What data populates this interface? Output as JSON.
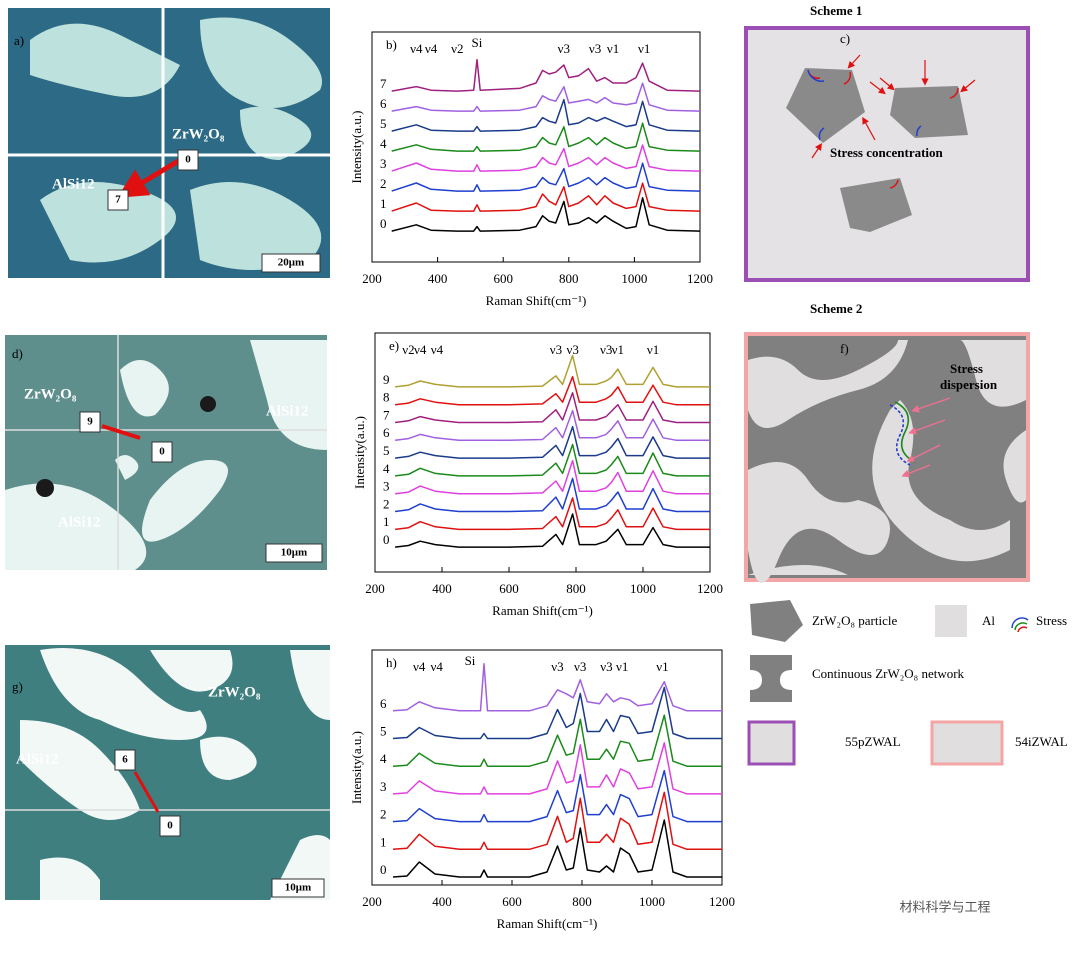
{
  "micrographs": [
    {
      "label": "a)",
      "phase_1": "ZrW₂O₈",
      "phase_2": "AlSi12",
      "point_start": "0",
      "point_end": "7",
      "scale_bar": "20μm"
    },
    {
      "label": "d)",
      "phase_1": "ZrW₂O₈",
      "phase_2": "AlSi12",
      "phase_3": "AlSi12",
      "point_start": "9",
      "point_end": "0",
      "scale_bar": "10μm"
    },
    {
      "label": "g)",
      "phase_1": "ZrW₂O₈",
      "phase_2": "AlSi12",
      "point_start": "6",
      "point_end": "0",
      "scale_bar": "10μm"
    }
  ],
  "schemes": [
    {
      "title": "Scheme 1",
      "label": "c)",
      "annotation": "Stress concentration"
    },
    {
      "title": "Scheme 2",
      "label": "f)",
      "annotation_1": "Stress",
      "annotation_2": "dispersion"
    }
  ],
  "legend": {
    "particle": "ZrW₂O₈ particle",
    "matrix": "Al",
    "stress": "Stress",
    "network": "Continuous ZrW₂O₈ network",
    "sample_1": "55pZWAL",
    "sample_2": "54iZWAL"
  },
  "watermark": "材料科学与工程",
  "chart_data": [
    {
      "type": "line",
      "label": "b)",
      "x_label": "Raman Shift(cm⁻¹)",
      "y_label": "Intensity(a.u.)",
      "xlim": [
        200,
        1200
      ],
      "xticks": [
        200,
        400,
        600,
        800,
        1000,
        1200
      ],
      "x": [
        260,
        335,
        380,
        460,
        510,
        520,
        530,
        650,
        700,
        720,
        740,
        760,
        785,
        800,
        830,
        860,
        885,
        910,
        935,
        975,
        1005,
        1025,
        1045,
        1100,
        1200
      ],
      "series": [
        {
          "name": "0",
          "color": "#000000",
          "values": [
            0.05,
            0.4,
            0.1,
            0.05,
            0.05,
            0.3,
            0.05,
            0.1,
            0.3,
            0.9,
            0.6,
            0.5,
            1.7,
            0.4,
            0.5,
            0.8,
            0.5,
            0.9,
            0.6,
            0.2,
            0.3,
            1.9,
            0.4,
            0.1,
            0.05
          ]
        },
        {
          "name": "1",
          "color": "#e01010",
          "values": [
            0.05,
            0.5,
            0.1,
            0.05,
            0.05,
            0.4,
            0.05,
            0.1,
            0.3,
            1.0,
            0.6,
            0.4,
            1.4,
            0.3,
            0.5,
            0.9,
            0.4,
            0.9,
            0.5,
            0.2,
            0.3,
            1.6,
            0.3,
            0.1,
            0.05
          ]
        },
        {
          "name": "2",
          "color": "#1f3fcf",
          "values": [
            0.05,
            0.5,
            0.15,
            0.05,
            0.05,
            0.4,
            0.05,
            0.1,
            0.3,
            0.8,
            0.5,
            0.4,
            1.3,
            0.3,
            0.5,
            0.8,
            0.4,
            0.8,
            0.5,
            0.2,
            0.3,
            1.6,
            0.3,
            0.1,
            0.05
          ]
        },
        {
          "name": "3",
          "color": "#e040e0",
          "values": [
            0.05,
            0.5,
            0.15,
            0.05,
            0.05,
            0.4,
            0.05,
            0.1,
            0.3,
            0.8,
            0.5,
            0.4,
            1.3,
            0.3,
            0.5,
            0.8,
            0.4,
            0.8,
            0.5,
            0.2,
            0.3,
            1.5,
            0.3,
            0.1,
            0.05
          ]
        },
        {
          "name": "4",
          "color": "#1a8a1a",
          "values": [
            0.05,
            0.4,
            0.15,
            0.05,
            0.05,
            0.3,
            0.05,
            0.1,
            0.3,
            0.8,
            0.5,
            0.4,
            1.4,
            0.3,
            0.5,
            0.8,
            0.4,
            0.8,
            0.5,
            0.2,
            0.3,
            1.6,
            0.3,
            0.1,
            0.05
          ]
        },
        {
          "name": "5",
          "color": "#1a3a8a",
          "values": [
            0.05,
            0.4,
            0.1,
            0.05,
            0.05,
            0.3,
            0.05,
            0.1,
            0.3,
            0.8,
            0.6,
            0.5,
            1.8,
            0.4,
            0.5,
            0.8,
            0.6,
            0.8,
            0.6,
            0.3,
            0.4,
            1.7,
            0.4,
            0.1,
            0.05
          ]
        },
        {
          "name": "6",
          "color": "#a060e0",
          "values": [
            0.05,
            0.3,
            0.1,
            0.05,
            0.05,
            0.3,
            0.05,
            0.1,
            0.3,
            0.9,
            0.7,
            0.6,
            1.4,
            0.5,
            0.6,
            0.7,
            0.5,
            0.8,
            0.5,
            0.4,
            0.5,
            1.6,
            0.4,
            0.1,
            0.05
          ]
        },
        {
          "name": "7",
          "color": "#a02080",
          "values": [
            0.05,
            0.3,
            0.1,
            0.05,
            0.1,
            1.8,
            0.1,
            0.2,
            0.5,
            1.2,
            1.0,
            1.1,
            1.5,
            0.8,
            0.9,
            1.3,
            0.6,
            0.8,
            0.5,
            0.5,
            0.8,
            1.6,
            0.6,
            0.1,
            0.05
          ]
        }
      ],
      "annotations": [
        {
          "text": "ν4",
          "x": 335
        },
        {
          "text": "ν4",
          "x": 380
        },
        {
          "text": "ν2",
          "x": 460
        },
        {
          "text": "Si",
          "x": 520
        },
        {
          "text": "ν3",
          "x": 785
        },
        {
          "text": "ν3",
          "x": 880
        },
        {
          "text": "ν1",
          "x": 935
        },
        {
          "text": "ν1",
          "x": 1030
        }
      ]
    },
    {
      "type": "line",
      "label": "e)",
      "x_label": "Raman Shift(cm⁻¹)",
      "y_label": "Intensity(a.u.)",
      "xlim": [
        200,
        1200
      ],
      "xticks": [
        200,
        400,
        600,
        800,
        1000,
        1200
      ],
      "x": [
        260,
        300,
        335,
        380,
        450,
        600,
        700,
        740,
        760,
        790,
        810,
        860,
        890,
        905,
        925,
        950,
        1000,
        1030,
        1060,
        1100,
        1200
      ],
      "series": [
        {
          "name": "0",
          "color": "#000000",
          "values": [
            0.05,
            0.15,
            0.4,
            0.2,
            0.05,
            0.05,
            0.1,
            0.8,
            0.2,
            2.0,
            0.2,
            0.2,
            0.4,
            0.7,
            1.1,
            0.2,
            0.2,
            1.2,
            0.2,
            0.05,
            0.05
          ]
        },
        {
          "name": "1",
          "color": "#e01010",
          "values": [
            0.05,
            0.15,
            0.5,
            0.2,
            0.05,
            0.05,
            0.1,
            0.8,
            0.2,
            1.9,
            0.2,
            0.2,
            0.4,
            0.7,
            1.2,
            0.2,
            0.2,
            1.3,
            0.2,
            0.05,
            0.05
          ]
        },
        {
          "name": "2",
          "color": "#1f3fcf",
          "values": [
            0.05,
            0.15,
            0.5,
            0.2,
            0.05,
            0.05,
            0.1,
            0.9,
            0.2,
            2.0,
            0.2,
            0.2,
            0.4,
            0.7,
            1.2,
            0.2,
            0.2,
            1.4,
            0.2,
            0.05,
            0.05
          ]
        },
        {
          "name": "3",
          "color": "#e040e0",
          "values": [
            0.05,
            0.15,
            0.5,
            0.2,
            0.05,
            0.05,
            0.1,
            0.8,
            0.2,
            2.0,
            0.2,
            0.2,
            0.4,
            0.7,
            1.3,
            0.2,
            0.2,
            1.4,
            0.2,
            0.05,
            0.05
          ]
        },
        {
          "name": "4",
          "color": "#1a8a1a",
          "values": [
            0.05,
            0.15,
            0.5,
            0.2,
            0.05,
            0.05,
            0.1,
            0.8,
            0.2,
            1.9,
            0.2,
            0.2,
            0.4,
            0.7,
            1.2,
            0.2,
            0.2,
            1.4,
            0.2,
            0.05,
            0.05
          ]
        },
        {
          "name": "5",
          "color": "#1a3a8a",
          "values": [
            0.05,
            0.15,
            0.4,
            0.2,
            0.05,
            0.05,
            0.1,
            0.8,
            0.2,
            1.9,
            0.2,
            0.2,
            0.4,
            0.7,
            1.2,
            0.2,
            0.2,
            1.3,
            0.2,
            0.05,
            0.05
          ]
        },
        {
          "name": "6",
          "color": "#a060e0",
          "values": [
            0.05,
            0.15,
            0.4,
            0.2,
            0.05,
            0.05,
            0.1,
            0.8,
            0.2,
            1.8,
            0.2,
            0.2,
            0.4,
            0.7,
            1.2,
            0.2,
            0.2,
            1.3,
            0.2,
            0.05,
            0.05
          ]
        },
        {
          "name": "7",
          "color": "#a02080",
          "values": [
            0.05,
            0.15,
            0.4,
            0.2,
            0.05,
            0.05,
            0.1,
            0.8,
            0.2,
            1.8,
            0.2,
            0.2,
            0.4,
            0.7,
            1.1,
            0.2,
            0.2,
            1.3,
            0.2,
            0.05,
            0.05
          ]
        },
        {
          "name": "8",
          "color": "#e01010",
          "values": [
            0.05,
            0.15,
            0.4,
            0.2,
            0.05,
            0.05,
            0.1,
            0.7,
            0.2,
            1.7,
            0.2,
            0.2,
            0.4,
            0.6,
            1.1,
            0.2,
            0.2,
            1.2,
            0.2,
            0.05,
            0.05
          ]
        },
        {
          "name": "9",
          "color": "#b0a030",
          "values": [
            0.05,
            0.15,
            0.4,
            0.2,
            0.05,
            0.05,
            0.1,
            0.7,
            0.2,
            1.9,
            0.2,
            0.2,
            0.4,
            0.6,
            1.1,
            0.2,
            0.2,
            1.2,
            0.2,
            0.05,
            0.05
          ]
        }
      ],
      "annotations": [
        {
          "text": "ν2",
          "x": 300
        },
        {
          "text": "ν4",
          "x": 335
        },
        {
          "text": "ν4",
          "x": 385
        },
        {
          "text": "ν3",
          "x": 740
        },
        {
          "text": "ν3",
          "x": 790
        },
        {
          "text": "ν3",
          "x": 890
        },
        {
          "text": "ν1",
          "x": 925
        },
        {
          "text": "ν1",
          "x": 1030
        }
      ]
    },
    {
      "type": "line",
      "label": "h)",
      "x_label": "Raman Shift(cm⁻¹)",
      "y_label": "Intensity(a.u.)",
      "xlim": [
        200,
        1200
      ],
      "xticks": [
        200,
        400,
        600,
        800,
        1000,
        1200
      ],
      "x": [
        260,
        300,
        335,
        380,
        450,
        510,
        520,
        530,
        650,
        700,
        730,
        755,
        775,
        795,
        815,
        850,
        870,
        890,
        910,
        935,
        960,
        1000,
        1035,
        1060,
        1100,
        1200
      ],
      "series": [
        {
          "name": "0",
          "color": "#000000",
          "values": [
            0.05,
            0.1,
            0.8,
            0.2,
            0.05,
            0.05,
            0.4,
            0.05,
            0.05,
            0.3,
            1.6,
            0.4,
            0.5,
            2.5,
            0.4,
            0.3,
            0.6,
            0.3,
            1.5,
            1.2,
            0.3,
            0.4,
            2.9,
            0.3,
            0.05,
            0.05
          ]
        },
        {
          "name": "1",
          "color": "#e01010",
          "values": [
            0.05,
            0.1,
            0.8,
            0.2,
            0.05,
            0.05,
            0.4,
            0.05,
            0.05,
            0.3,
            1.7,
            0.4,
            0.6,
            2.6,
            0.4,
            0.4,
            0.8,
            0.4,
            1.6,
            1.3,
            0.3,
            0.4,
            2.9,
            0.3,
            0.05,
            0.05
          ]
        },
        {
          "name": "2",
          "color": "#1f3fcf",
          "values": [
            0.05,
            0.1,
            0.7,
            0.2,
            0.05,
            0.05,
            0.4,
            0.05,
            0.05,
            0.3,
            1.6,
            0.5,
            0.6,
            2.4,
            0.4,
            0.4,
            0.9,
            0.4,
            1.4,
            1.2,
            0.3,
            0.4,
            2.6,
            0.3,
            0.05,
            0.05
          ]
        },
        {
          "name": "3",
          "color": "#e040e0",
          "values": [
            0.05,
            0.1,
            0.7,
            0.2,
            0.05,
            0.05,
            0.4,
            0.05,
            0.05,
            0.3,
            1.7,
            0.6,
            0.7,
            2.5,
            0.4,
            0.4,
            1.0,
            0.4,
            1.3,
            1.1,
            0.3,
            0.4,
            2.6,
            0.3,
            0.05,
            0.05
          ]
        },
        {
          "name": "4",
          "color": "#1a8a1a",
          "values": [
            0.05,
            0.1,
            0.7,
            0.2,
            0.05,
            0.05,
            0.4,
            0.05,
            0.05,
            0.3,
            1.6,
            0.6,
            0.7,
            2.4,
            0.4,
            0.4,
            0.9,
            0.4,
            1.3,
            1.2,
            0.3,
            0.4,
            2.6,
            0.3,
            0.05,
            0.05
          ]
        },
        {
          "name": "5",
          "color": "#1a3a8a",
          "values": [
            0.05,
            0.1,
            0.6,
            0.2,
            0.05,
            0.05,
            0.3,
            0.05,
            0.05,
            0.3,
            1.5,
            0.6,
            0.8,
            2.3,
            0.4,
            0.4,
            1.0,
            0.4,
            1.2,
            1.1,
            0.3,
            0.4,
            2.6,
            0.3,
            0.05,
            0.05
          ]
        },
        {
          "name": "6",
          "color": "#a060e0",
          "values": [
            0.05,
            0.1,
            0.5,
            0.2,
            0.05,
            0.05,
            2.4,
            0.05,
            0.05,
            0.3,
            1.1,
            0.9,
            0.7,
            1.6,
            0.5,
            0.4,
            0.9,
            0.5,
            0.7,
            0.6,
            0.3,
            0.4,
            1.5,
            0.3,
            0.05,
            0.05
          ]
        }
      ],
      "annotations": [
        {
          "text": "Si",
          "x": 480
        },
        {
          "text": "ν4",
          "x": 335
        },
        {
          "text": "ν4",
          "x": 385
        },
        {
          "text": "ν3",
          "x": 730
        },
        {
          "text": "ν3",
          "x": 795
        },
        {
          "text": "ν3",
          "x": 870
        },
        {
          "text": "ν1",
          "x": 915
        },
        {
          "text": "ν1",
          "x": 1030
        }
      ]
    }
  ]
}
